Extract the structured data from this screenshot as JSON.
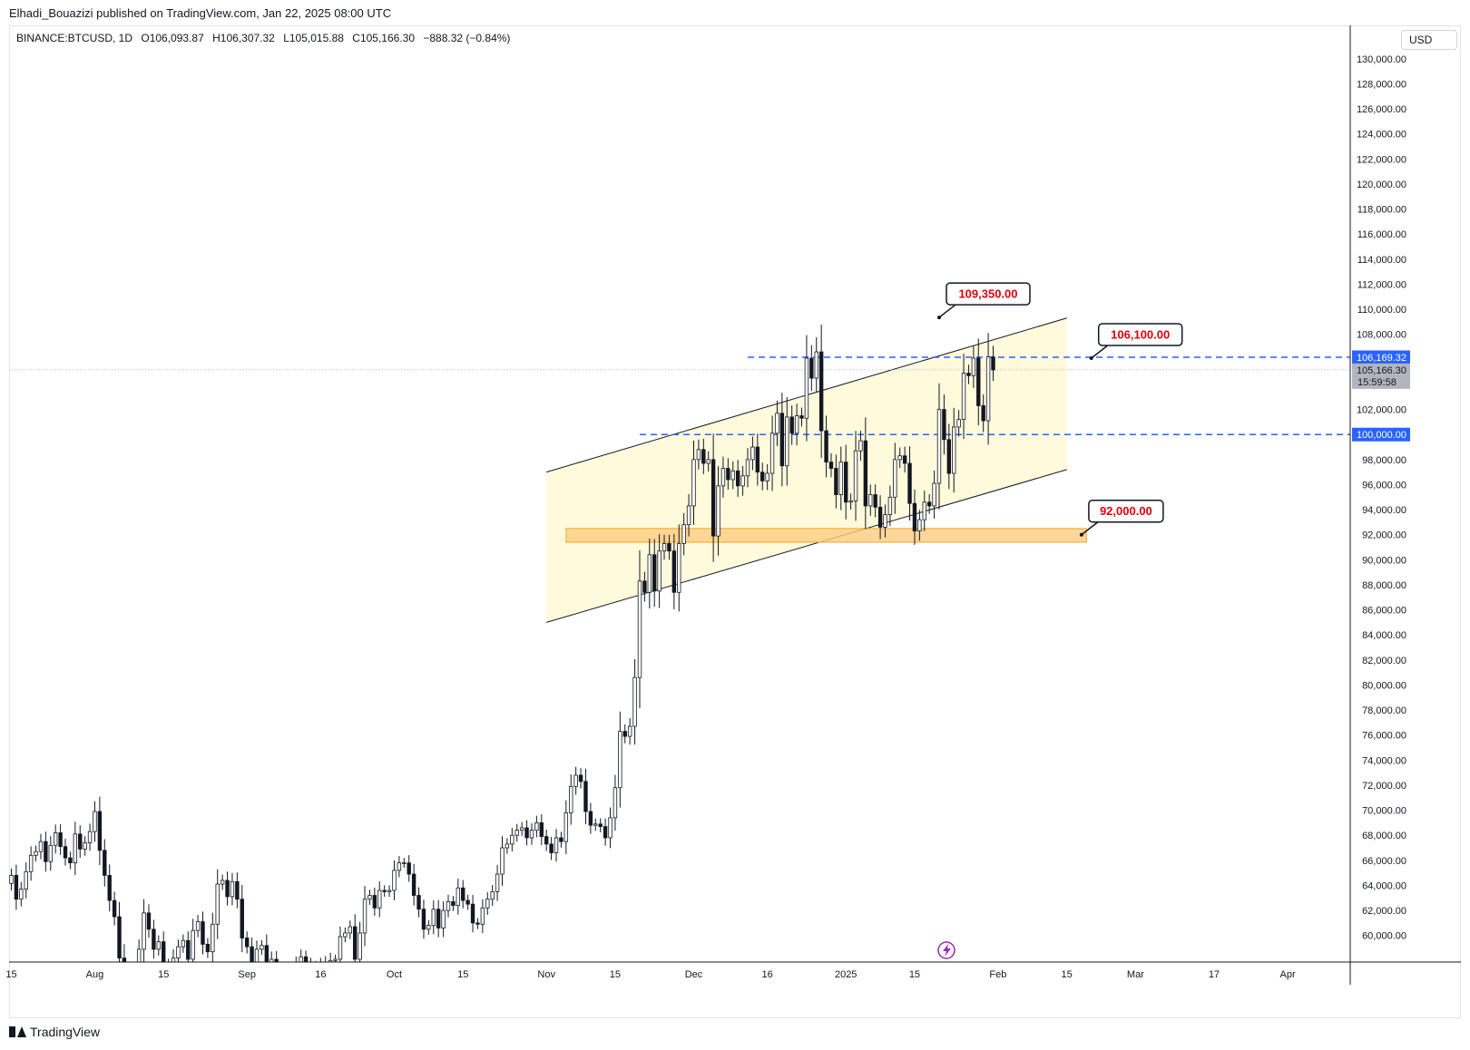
{
  "header": {
    "published": "Elhadi_Bouazizi published on TradingView.com, Jan 22, 2025 08:00 UTC"
  },
  "legend": {
    "symbol": "BINANCE:BTCUSD, 1D",
    "open": "O106,093.87",
    "high": "H106,307.32",
    "low": "L105,015.88",
    "close": "C105,166.30",
    "change": "−888.32 (−0.84%)"
  },
  "currency_label": "USD",
  "price_tags": {
    "last": "106,169.32",
    "current": "105,166.30",
    "countdown": "15:59:58",
    "level_100k": "100,000.00"
  },
  "brand": {
    "name": "TradingView"
  },
  "colors": {
    "candle": "#131722",
    "channel_fill": "#fff9d6",
    "support_zone": "#ffcc80",
    "support_zone_border": "#f5a623",
    "dashed_level": "#2962ff",
    "callout_text": "#e0000c",
    "price_tag_blue": "#2962ff",
    "price_tag_grey": "#b2b5be"
  },
  "chart_data": {
    "type": "candlestick",
    "y_ticks": [
      "60,000.00",
      "62,000.00",
      "64,000.00",
      "66,000.00",
      "68,000.00",
      "70,000.00",
      "72,000.00",
      "74,000.00",
      "76,000.00",
      "78,000.00",
      "80,000.00",
      "82,000.00",
      "84,000.00",
      "86,000.00",
      "88,000.00",
      "90,000.00",
      "92,000.00",
      "94,000.00",
      "96,000.00",
      "98,000.00",
      "100,000.00",
      "102,000.00",
      "104,000.00",
      "106,000.00",
      "108,000.00",
      "110,000.00",
      "112,000.00",
      "114,000.00",
      "116,000.00",
      "118,000.00",
      "120,000.00",
      "122,000.00",
      "124,000.00",
      "126,000.00",
      "128,000.00",
      "130,000.00"
    ],
    "ylim": [
      58000,
      131000
    ],
    "x_ticks": [
      {
        "label": "15",
        "date": "2024-07-15"
      },
      {
        "label": "Aug",
        "date": "2024-08-01"
      },
      {
        "label": "15",
        "date": "2024-08-15"
      },
      {
        "label": "Sep",
        "date": "2024-09-01"
      },
      {
        "label": "16",
        "date": "2024-09-16"
      },
      {
        "label": "Oct",
        "date": "2024-10-01"
      },
      {
        "label": "15",
        "date": "2024-10-15"
      },
      {
        "label": "Nov",
        "date": "2024-11-01"
      },
      {
        "label": "15",
        "date": "2024-11-15"
      },
      {
        "label": "Dec",
        "date": "2024-12-01"
      },
      {
        "label": "16",
        "date": "2024-12-16"
      },
      {
        "label": "2025",
        "date": "2025-01-01"
      },
      {
        "label": "15",
        "date": "2025-01-15"
      },
      {
        "label": "Feb",
        "date": "2025-02-01"
      },
      {
        "label": "15",
        "date": "2025-02-15"
      },
      {
        "label": "Mar",
        "date": "2025-03-01"
      },
      {
        "label": "17",
        "date": "2025-03-17"
      },
      {
        "label": "Apr",
        "date": "2025-04-01"
      }
    ],
    "start_date": "2024-07-15",
    "closes": [
      64800,
      62900,
      63700,
      65100,
      66400,
      66700,
      67500,
      65900,
      67200,
      68200,
      67100,
      66200,
      65800,
      68100,
      66900,
      67400,
      68300,
      69900,
      66800,
      64800,
      62800,
      61500,
      58200,
      55100,
      56000,
      57200,
      58900,
      61800,
      60500,
      58900,
      59500,
      57600,
      56800,
      58200,
      59100,
      59600,
      58100,
      60400,
      61100,
      59300,
      58700,
      60900,
      64100,
      64400,
      63100,
      64300,
      62900,
      59800,
      59100,
      57500,
      58900,
      59200,
      57000,
      58100,
      56800,
      54900,
      54200,
      55100,
      57400,
      58300,
      57700,
      57000,
      57500,
      57800,
      56900,
      58000,
      58100,
      59900,
      60200,
      60700,
      58100,
      60200,
      62900,
      63200,
      62200,
      63600,
      63500,
      63600,
      65200,
      65800,
      65800,
      64900,
      63200,
      62100,
      60500,
      60800,
      62100,
      60600,
      62000,
      62700,
      62400,
      63800,
      62800,
      62500,
      61000,
      60900,
      62200,
      62900,
      63500,
      64900,
      67000,
      67300,
      68000,
      68400,
      68600,
      67800,
      68400,
      69000,
      67900,
      67300,
      66600,
      67800,
      67500,
      69800,
      71900,
      72800,
      72300,
      69900,
      68800,
      68900,
      68700,
      67800,
      69400,
      71800,
      76300,
      75900,
      76700,
      80600,
      88300,
      87400,
      90400,
      87500,
      90700,
      91300,
      90700,
      87400,
      91300,
      92800,
      94300,
      98000,
      98800,
      97700,
      98000,
      91900,
      95900,
      97300,
      96400,
      97100,
      95900,
      96700,
      98000,
      99000,
      97000,
      96300,
      96900,
      100100,
      101700,
      97500,
      101400,
      100100,
      101500,
      101300,
      106100,
      104500,
      106600,
      100300,
      97800,
      97300,
      95200,
      97800,
      94600,
      94700,
      98700,
      99500,
      94300,
      95200,
      94200,
      92600,
      93600,
      95000,
      98000,
      98300,
      97700,
      94500,
      92300,
      93200,
      94600,
      94300,
      96100,
      102000,
      99600,
      96900,
      100600,
      101200,
      104900,
      104700,
      106100,
      102300,
      101100,
      106200,
      105166
    ],
    "channel_upper": {
      "x": [
        "2024-11-01",
        "2025-02-15"
      ],
      "y": [
        97000,
        109300
      ]
    },
    "channel_lower": {
      "x": [
        "2024-11-01",
        "2025-02-15"
      ],
      "y": [
        85000,
        97200
      ]
    },
    "support_zone": {
      "x": [
        "2024-11-05",
        "2025-02-19"
      ],
      "y": [
        91400,
        92500
      ]
    },
    "levels": [
      {
        "price": 106169.32,
        "style": "dashed"
      },
      {
        "price": 100000,
        "style": "dashed"
      },
      {
        "price": 105166.3,
        "style": "dotted"
      }
    ],
    "annotations": [
      {
        "text": "109,350.00",
        "date": "2025-01-20",
        "price": 109350
      },
      {
        "text": "106,100.00",
        "date": "2025-02-20",
        "price": 106100
      },
      {
        "text": "92,000.00",
        "date": "2025-02-18",
        "price": 92000
      }
    ]
  }
}
